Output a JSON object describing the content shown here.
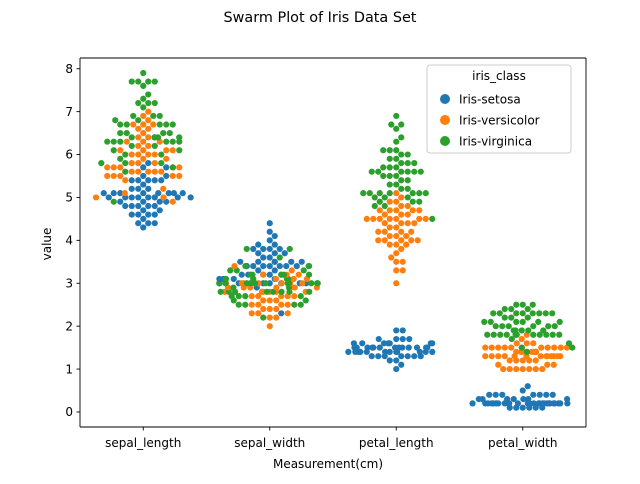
{
  "chart_data": {
    "type": "scatter",
    "subtype": "swarm",
    "title": "Swarm Plot of Iris Data Set",
    "xlabel": "Measurement(cm)",
    "ylabel": "value",
    "categories": [
      "sepal_length",
      "sepal_width",
      "petal_length",
      "petal_width"
    ],
    "ylim": [
      -0.35,
      8.25
    ],
    "yticks": [
      0,
      1,
      2,
      3,
      4,
      5,
      6,
      7,
      8
    ],
    "ytick_labels": [
      "0",
      "1",
      "2",
      "3",
      "4",
      "5",
      "6",
      "7",
      "8"
    ],
    "grid": false,
    "legend": {
      "title": "iris_class",
      "placement": "top-right",
      "entries": [
        "Iris-setosa",
        "Iris-versicolor",
        "Iris-virginica"
      ]
    },
    "colors": {
      "Iris-setosa": "#1f77b4",
      "Iris-versicolor": "#ff7f0e",
      "Iris-virginica": "#2ca02c"
    },
    "series": [
      {
        "name": "Iris-setosa",
        "values": {
          "sepal_length": [
            5.1,
            4.9,
            4.7,
            4.6,
            5.0,
            5.4,
            4.6,
            5.0,
            4.4,
            4.9,
            5.4,
            4.8,
            4.8,
            4.3,
            5.8,
            5.7,
            5.4,
            5.1,
            5.7,
            5.1,
            5.4,
            5.1,
            4.6,
            5.1,
            4.8,
            5.0,
            5.0,
            5.2,
            5.2,
            4.7,
            4.8,
            5.4,
            5.2,
            5.5,
            4.9,
            5.0,
            5.5,
            4.9,
            4.4,
            5.1,
            5.0,
            4.5,
            4.4,
            5.0,
            5.1,
            4.8,
            5.1,
            4.6,
            5.3,
            5.0
          ],
          "sepal_width": [
            3.5,
            3.0,
            3.2,
            3.1,
            3.6,
            3.9,
            3.4,
            3.4,
            2.9,
            3.1,
            3.7,
            3.4,
            3.0,
            3.0,
            4.0,
            4.4,
            3.9,
            3.5,
            3.8,
            3.8,
            3.4,
            3.7,
            3.6,
            3.3,
            3.4,
            3.0,
            3.4,
            3.5,
            3.4,
            3.2,
            3.1,
            3.4,
            4.1,
            4.2,
            3.1,
            3.2,
            3.5,
            3.1,
            3.0,
            3.4,
            3.5,
            2.3,
            3.2,
            3.5,
            3.8,
            3.0,
            3.8,
            3.2,
            3.7,
            3.3
          ],
          "petal_length": [
            1.4,
            1.4,
            1.3,
            1.5,
            1.4,
            1.7,
            1.4,
            1.5,
            1.4,
            1.5,
            1.5,
            1.6,
            1.4,
            1.1,
            1.2,
            1.5,
            1.3,
            1.4,
            1.7,
            1.5,
            1.7,
            1.5,
            1.0,
            1.7,
            1.9,
            1.6,
            1.6,
            1.5,
            1.4,
            1.6,
            1.6,
            1.5,
            1.5,
            1.4,
            1.5,
            1.2,
            1.3,
            1.5,
            1.3,
            1.5,
            1.3,
            1.3,
            1.3,
            1.6,
            1.9,
            1.4,
            1.6,
            1.4,
            1.5,
            1.4
          ],
          "petal_width": [
            0.2,
            0.2,
            0.2,
            0.2,
            0.2,
            0.4,
            0.3,
            0.2,
            0.2,
            0.1,
            0.2,
            0.2,
            0.1,
            0.1,
            0.2,
            0.4,
            0.4,
            0.3,
            0.3,
            0.3,
            0.2,
            0.4,
            0.2,
            0.5,
            0.2,
            0.2,
            0.4,
            0.2,
            0.2,
            0.2,
            0.2,
            0.4,
            0.1,
            0.2,
            0.1,
            0.2,
            0.2,
            0.1,
            0.2,
            0.2,
            0.3,
            0.3,
            0.2,
            0.6,
            0.4,
            0.3,
            0.2,
            0.2,
            0.2,
            0.2
          ]
        }
      },
      {
        "name": "Iris-versicolor",
        "values": {
          "sepal_length": [
            7.0,
            6.4,
            6.9,
            5.5,
            6.5,
            5.7,
            6.3,
            4.9,
            6.6,
            5.2,
            5.0,
            5.9,
            6.0,
            6.1,
            5.6,
            6.7,
            5.6,
            5.8,
            6.2,
            5.6,
            5.9,
            6.1,
            6.3,
            6.1,
            6.4,
            6.6,
            6.8,
            6.7,
            6.0,
            5.7,
            5.5,
            5.5,
            5.8,
            6.0,
            5.4,
            6.0,
            6.7,
            6.3,
            5.6,
            5.5,
            5.5,
            6.1,
            5.8,
            5.0,
            5.6,
            5.7,
            5.7,
            6.2,
            5.1,
            5.7
          ],
          "sepal_width": [
            3.2,
            3.2,
            3.1,
            2.3,
            2.8,
            2.8,
            3.3,
            2.4,
            2.9,
            2.7,
            2.0,
            3.0,
            2.2,
            2.9,
            2.9,
            3.1,
            3.0,
            2.7,
            2.2,
            2.5,
            3.2,
            2.8,
            2.5,
            2.8,
            2.9,
            3.0,
            2.8,
            3.0,
            2.9,
            2.6,
            2.4,
            2.4,
            2.7,
            2.7,
            3.0,
            3.4,
            3.1,
            2.3,
            3.0,
            2.5,
            2.6,
            3.0,
            2.6,
            2.3,
            2.7,
            3.0,
            2.9,
            2.9,
            2.5,
            2.8
          ],
          "petal_length": [
            4.7,
            4.5,
            4.9,
            4.0,
            4.6,
            4.5,
            4.7,
            3.3,
            4.6,
            3.9,
            3.5,
            4.2,
            4.0,
            4.7,
            3.6,
            4.4,
            4.5,
            4.1,
            4.5,
            3.9,
            4.8,
            4.0,
            4.9,
            4.7,
            4.3,
            4.4,
            4.8,
            5.0,
            4.5,
            3.5,
            3.8,
            3.7,
            3.9,
            5.1,
            4.5,
            4.5,
            4.7,
            4.4,
            4.1,
            4.0,
            4.4,
            4.6,
            4.0,
            3.3,
            4.2,
            4.2,
            4.2,
            4.3,
            3.0,
            4.1
          ],
          "petal_width": [
            1.4,
            1.5,
            1.5,
            1.3,
            1.5,
            1.3,
            1.6,
            1.0,
            1.3,
            1.4,
            1.0,
            1.5,
            1.0,
            1.4,
            1.3,
            1.4,
            1.5,
            1.0,
            1.5,
            1.1,
            1.8,
            1.3,
            1.5,
            1.2,
            1.3,
            1.4,
            1.4,
            1.7,
            1.5,
            1.0,
            1.1,
            1.0,
            1.2,
            1.6,
            1.5,
            1.6,
            1.5,
            1.3,
            1.3,
            1.3,
            1.2,
            1.4,
            1.2,
            1.0,
            1.3,
            1.2,
            1.3,
            1.3,
            1.1,
            1.3
          ]
        }
      },
      {
        "name": "Iris-virginica",
        "values": {
          "sepal_length": [
            6.3,
            5.8,
            7.1,
            6.3,
            6.5,
            7.6,
            4.9,
            7.3,
            6.7,
            7.2,
            6.5,
            6.4,
            6.8,
            5.7,
            5.8,
            6.4,
            6.5,
            7.7,
            7.7,
            6.0,
            6.9,
            5.6,
            7.7,
            6.3,
            6.7,
            7.2,
            6.2,
            6.1,
            6.4,
            7.2,
            7.4,
            7.9,
            6.4,
            6.3,
            6.1,
            7.7,
            6.3,
            6.4,
            6.0,
            6.9,
            6.7,
            6.9,
            5.8,
            6.8,
            6.7,
            6.7,
            6.3,
            6.5,
            6.2,
            5.9
          ],
          "sepal_width": [
            3.3,
            2.7,
            3.0,
            2.9,
            3.0,
            3.0,
            2.5,
            2.9,
            2.5,
            3.6,
            3.2,
            2.7,
            3.0,
            2.5,
            2.8,
            3.2,
            3.0,
            3.8,
            2.6,
            2.2,
            3.2,
            2.8,
            2.8,
            2.7,
            3.3,
            3.2,
            2.8,
            3.0,
            2.8,
            3.0,
            2.8,
            3.8,
            2.8,
            2.8,
            2.6,
            3.0,
            3.4,
            3.1,
            3.0,
            3.1,
            3.1,
            3.1,
            2.7,
            3.2,
            3.3,
            3.0,
            2.5,
            3.0,
            3.4,
            3.0
          ],
          "petal_length": [
            6.0,
            5.1,
            5.9,
            5.6,
            5.8,
            6.6,
            4.5,
            6.3,
            5.8,
            6.1,
            5.1,
            5.3,
            5.5,
            5.0,
            5.1,
            5.3,
            5.5,
            6.7,
            6.9,
            5.0,
            5.7,
            4.9,
            6.7,
            4.9,
            5.7,
            6.0,
            4.8,
            4.9,
            5.6,
            5.8,
            6.1,
            6.4,
            5.6,
            5.1,
            5.6,
            6.1,
            5.6,
            5.5,
            4.8,
            5.4,
            5.6,
            5.1,
            5.1,
            5.9,
            5.7,
            5.2,
            5.0,
            5.2,
            5.4,
            5.1
          ],
          "petal_width": [
            2.5,
            1.9,
            2.1,
            1.8,
            2.2,
            2.1,
            1.7,
            1.8,
            1.8,
            2.5,
            2.0,
            1.9,
            2.1,
            2.0,
            2.4,
            2.3,
            1.8,
            2.2,
            2.3,
            1.5,
            2.3,
            2.0,
            2.0,
            1.8,
            2.1,
            1.8,
            1.8,
            1.8,
            2.1,
            1.6,
            1.9,
            2.0,
            2.2,
            1.5,
            1.4,
            2.3,
            2.4,
            1.8,
            1.8,
            2.1,
            2.4,
            2.3,
            1.9,
            2.3,
            2.5,
            2.3,
            1.9,
            2.0,
            2.3,
            1.8
          ]
        }
      }
    ]
  }
}
